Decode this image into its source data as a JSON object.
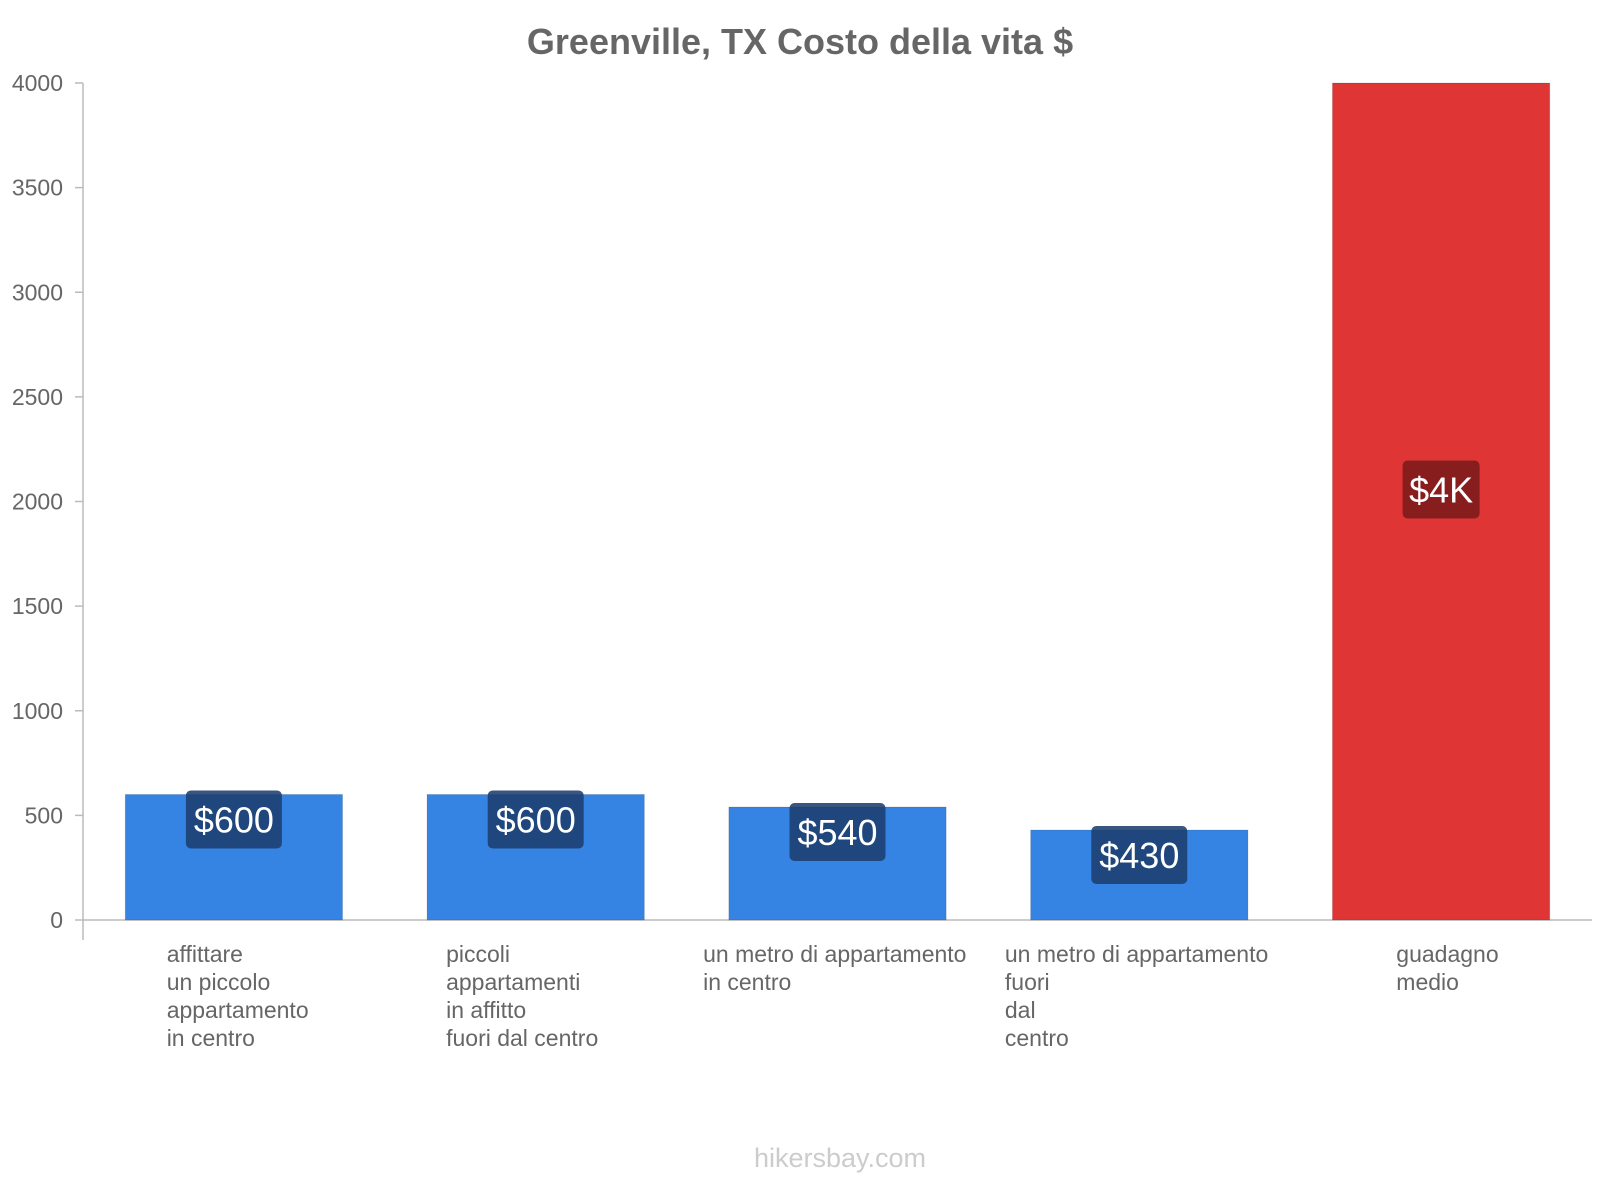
{
  "chart_data": {
    "type": "bar",
    "title": "Greenville, TX Costo della vita $",
    "xlabel": "",
    "ylabel": "",
    "ylim": [
      0,
      4000
    ],
    "yticks": [
      0,
      500,
      1000,
      1500,
      2000,
      2500,
      3000,
      3500,
      4000
    ],
    "grid": false,
    "categories": [
      [
        "affittare",
        "un piccolo",
        "appartamento",
        "in centro"
      ],
      [
        "piccoli",
        "appartamenti",
        "in affitto",
        "fuori dal centro"
      ],
      [
        "un metro di appartamento",
        "in centro"
      ],
      [
        "un metro di appartamento",
        "fuori",
        "dal",
        "centro"
      ],
      [
        "guadagno",
        "medio"
      ]
    ],
    "values": [
      600,
      600,
      540,
      430,
      4000
    ],
    "data_labels": [
      "$600",
      "$600",
      "$540",
      "$430",
      "$4K"
    ],
    "colors": [
      "#3584e4",
      "#3584e4",
      "#3584e4",
      "#3584e4",
      "#e03535"
    ],
    "label_bg_colors": [
      "#1c3f6e",
      "#1c3f6e",
      "#1c3f6e",
      "#1c3f6e",
      "#7a1a1a"
    ]
  },
  "watermark": "hikersbay.com"
}
